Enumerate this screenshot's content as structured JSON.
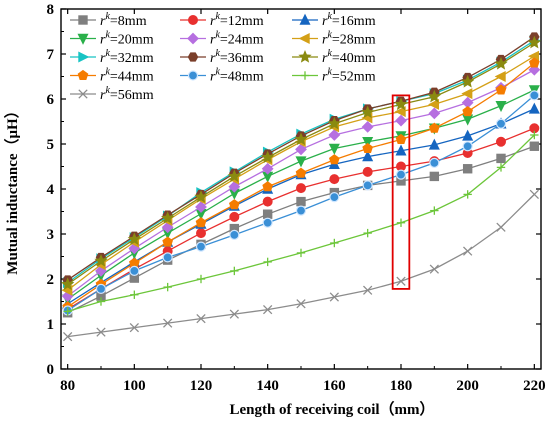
{
  "chart_data": {
    "type": "line",
    "title": "",
    "xlabel": "Length of receiving coil（mm）",
    "ylabel": "Mutual inductance（μH）",
    "xlim": [
      78,
      222
    ],
    "ylim": [
      0,
      8
    ],
    "x_ticks": [
      80,
      100,
      120,
      140,
      160,
      180,
      200,
      220
    ],
    "y_ticks": [
      0,
      1,
      2,
      3,
      4,
      5,
      6,
      7,
      8
    ],
    "legend_position": "top",
    "x": [
      80,
      90,
      100,
      110,
      120,
      130,
      140,
      150,
      160,
      170,
      180,
      190,
      200,
      210,
      220
    ],
    "series": [
      {
        "label_prefix": "r",
        "label_sup": "k",
        "name": "=8mm",
        "color": "#7f7f7f",
        "marker": "square",
        "values": [
          1.25,
          1.62,
          2.02,
          2.42,
          2.77,
          3.12,
          3.44,
          3.72,
          3.92,
          4.08,
          4.18,
          4.28,
          4.45,
          4.68,
          4.95
        ]
      },
      {
        "label_prefix": "r",
        "label_sup": "k",
        "name": "=12mm",
        "color": "#e8302f",
        "marker": "circle",
        "values": [
          1.33,
          1.78,
          2.22,
          2.62,
          3.02,
          3.38,
          3.72,
          4.02,
          4.22,
          4.38,
          4.5,
          4.62,
          4.8,
          5.05,
          5.35
        ]
      },
      {
        "label_prefix": "r",
        "label_sup": "k",
        "name": "=16mm",
        "color": "#1565c0",
        "marker": "triangle-up",
        "values": [
          1.45,
          1.92,
          2.38,
          2.82,
          3.22,
          3.62,
          4.0,
          4.32,
          4.55,
          4.72,
          4.85,
          4.98,
          5.18,
          5.45,
          5.78
        ]
      },
      {
        "label_prefix": "r",
        "label_sup": "k",
        "name": "=20mm",
        "color": "#2ab04a",
        "marker": "triangle-down",
        "values": [
          1.55,
          2.08,
          2.58,
          3.02,
          3.45,
          3.9,
          4.28,
          4.62,
          4.9,
          5.05,
          5.18,
          5.35,
          5.55,
          5.85,
          6.2
        ]
      },
      {
        "label_prefix": "r",
        "label_sup": "k",
        "name": "=24mm",
        "color": "#b66fe0",
        "marker": "diamond",
        "values": [
          1.62,
          2.18,
          2.68,
          3.15,
          3.6,
          4.05,
          4.45,
          4.88,
          5.2,
          5.38,
          5.52,
          5.68,
          5.92,
          6.25,
          6.65
        ]
      },
      {
        "label_prefix": "r",
        "label_sup": "k",
        "name": "=28mm",
        "color": "#d4a017",
        "marker": "triangle-left",
        "values": [
          1.75,
          2.32,
          2.82,
          3.3,
          3.78,
          4.22,
          4.65,
          5.05,
          5.38,
          5.58,
          5.72,
          5.88,
          6.12,
          6.5,
          6.95
        ]
      },
      {
        "label_prefix": "r",
        "label_sup": "k",
        "name": "=32mm",
        "color": "#18c4c4",
        "marker": "triangle-right",
        "values": [
          1.92,
          2.45,
          2.92,
          3.4,
          3.92,
          4.38,
          4.82,
          5.22,
          5.55,
          5.78,
          5.95,
          6.12,
          6.42,
          6.82,
          7.3
        ]
      },
      {
        "label_prefix": "r",
        "label_sup": "k",
        "name": "=36mm",
        "color": "#7b3f2a",
        "marker": "hexagon",
        "values": [
          1.98,
          2.48,
          2.95,
          3.42,
          3.88,
          4.35,
          4.78,
          5.18,
          5.52,
          5.78,
          5.95,
          6.15,
          6.48,
          6.88,
          7.38
        ]
      },
      {
        "label_prefix": "r",
        "label_sup": "k",
        "name": "=40mm",
        "color": "#8a8a10",
        "marker": "star",
        "values": [
          1.88,
          2.4,
          2.88,
          3.35,
          3.82,
          4.28,
          4.7,
          5.1,
          5.45,
          5.7,
          5.88,
          6.05,
          6.38,
          6.78,
          7.25
        ]
      },
      {
        "label_prefix": "r",
        "label_sup": "k",
        "name": "=44mm",
        "color": "#f57c00",
        "marker": "pentagon",
        "values": [
          1.38,
          1.88,
          2.35,
          2.82,
          3.25,
          3.65,
          4.05,
          4.35,
          4.65,
          4.9,
          5.1,
          5.35,
          5.72,
          6.2,
          6.8
        ]
      },
      {
        "label_prefix": "r",
        "label_sup": "k",
        "name": "=48mm",
        "color": "#3a8fd6",
        "marker": "sphere",
        "values": [
          1.3,
          1.78,
          2.18,
          2.48,
          2.72,
          2.98,
          3.25,
          3.52,
          3.82,
          4.08,
          4.32,
          4.58,
          4.95,
          5.45,
          6.08
        ]
      },
      {
        "label_prefix": "r",
        "label_sup": "k",
        "name": "=52mm",
        "color": "#6cc63a",
        "marker": "plus",
        "values": [
          1.28,
          1.5,
          1.65,
          1.82,
          2.0,
          2.18,
          2.38,
          2.58,
          2.8,
          3.02,
          3.25,
          3.52,
          3.88,
          4.48,
          5.2
        ]
      },
      {
        "label_prefix": "r",
        "label_sup": "k",
        "name": "=56mm",
        "color": "#8c8c8c",
        "marker": "x",
        "values": [
          0.72,
          0.82,
          0.92,
          1.02,
          1.12,
          1.22,
          1.32,
          1.45,
          1.6,
          1.75,
          1.95,
          2.22,
          2.62,
          3.15,
          3.88
        ]
      }
    ],
    "highlight_region": {
      "x_from": 177.5,
      "x_to": 182.5,
      "y_from": 1.78,
      "y_to": 6.08,
      "color": "#e00000"
    }
  }
}
